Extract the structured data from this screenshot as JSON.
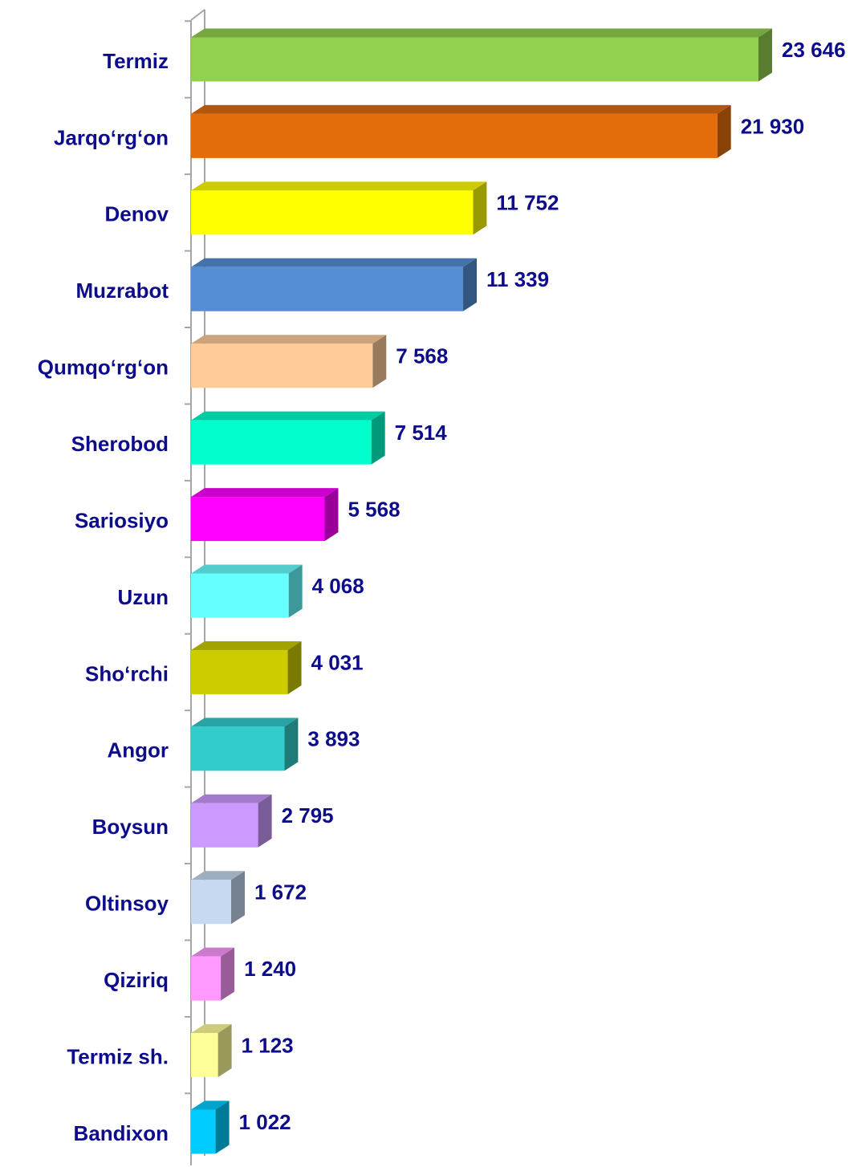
{
  "chart_data": {
    "type": "bar3d_horizontal",
    "categories": [
      "Termiz",
      "Jarqo‘rg‘on",
      "Denov",
      "Muzrabot",
      "Qumqo‘rg‘on",
      "Sherobod",
      "Sariosiyo",
      "Uzun",
      "Sho‘rchi",
      "Angor",
      "Boysun",
      "Oltinsoy",
      "Qiziriq",
      "Termiz sh.",
      "Bandixon"
    ],
    "values": [
      23646,
      21930,
      11752,
      11339,
      7568,
      7514,
      5568,
      4068,
      4031,
      3893,
      2795,
      1672,
      1240,
      1123,
      1022
    ],
    "value_labels": [
      "23 646",
      "21 930",
      "11 752",
      "11 339",
      "7 568",
      "7 514",
      "5 568",
      "4 068",
      "4 031",
      "3 893",
      "2 795",
      "1 672",
      "1 240",
      "1 123",
      "1 022"
    ],
    "colors": [
      "#92d050",
      "#e46c0a",
      "#ffff00",
      "#558ed5",
      "#ffcc99",
      "#00ffcc",
      "#ff00ff",
      "#66ffff",
      "#cccc00",
      "#33cccc",
      "#cc99ff",
      "#c6d9f1",
      "#ff99ff",
      "#ffff99",
      "#00ccff"
    ]
  }
}
